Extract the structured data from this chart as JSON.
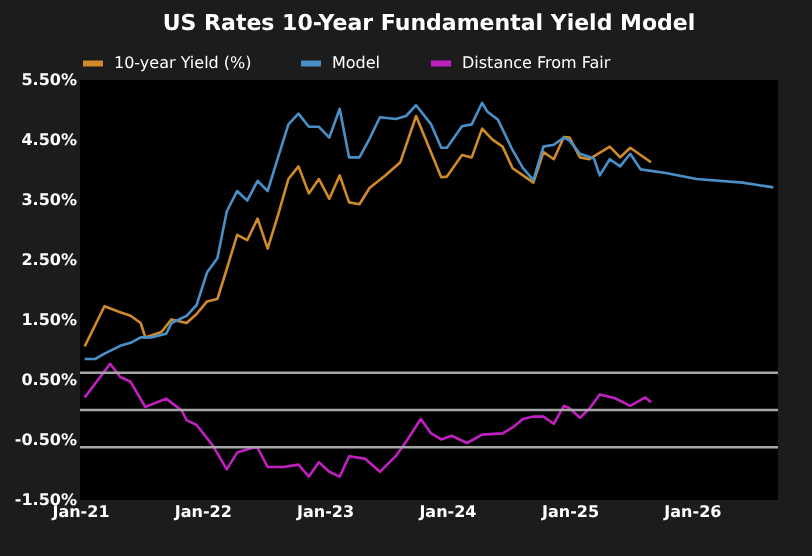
{
  "chart_data": {
    "type": "line",
    "title": "US Rates 10-Year Fundamental Yield Model",
    "xlim": [
      "2021-01-01",
      "2026-09-15"
    ],
    "xticks": [
      {
        "value": "2021-01-01",
        "label": "Jan-21"
      },
      {
        "value": "2022-01-01",
        "label": "Jan-22"
      },
      {
        "value": "2023-01-01",
        "label": "Jan-23"
      },
      {
        "value": "2024-01-01",
        "label": "Jan-24"
      },
      {
        "value": "2025-01-01",
        "label": "Jan-25"
      },
      {
        "value": "2026-01-01",
        "label": "Jan-26"
      }
    ],
    "ylim": [
      -1.5,
      5.5
    ],
    "yticks": [
      {
        "value": -1.5,
        "label": "-1.50%"
      },
      {
        "value": -0.5,
        "label": "-0.50%"
      },
      {
        "value": 0.5,
        "label": "0.50%"
      },
      {
        "value": 1.5,
        "label": "1.50%"
      },
      {
        "value": 2.5,
        "label": "2.50%"
      },
      {
        "value": 3.5,
        "label": "3.50%"
      },
      {
        "value": 4.5,
        "label": "4.50%"
      },
      {
        "value": 5.5,
        "label": "5.50%"
      }
    ],
    "grid": false,
    "legend": "top",
    "ref_lines": [
      {
        "axis": "y",
        "value": 0.62,
        "color": "#a6a6a6"
      },
      {
        "axis": "y",
        "value": 0,
        "color": "#a6a6a6"
      },
      {
        "axis": "y",
        "value": -0.62,
        "color": "#a6a6a6"
      }
    ],
    "series": [
      {
        "name": "10-year Yield (%)",
        "color": "#d08a2a",
        "x": [
          "2021-01-15",
          "2021-03-15",
          "2021-05-01",
          "2021-06-01",
          "2021-07-01",
          "2021-07-15",
          "2021-09-01",
          "2021-10-01",
          "2021-11-15",
          "2021-12-15",
          "2022-01-15",
          "2022-02-15",
          "2022-03-15",
          "2022-04-15",
          "2022-05-15",
          "2022-06-15",
          "2022-07-15",
          "2022-08-15",
          "2022-09-15",
          "2022-10-15",
          "2022-11-15",
          "2022-12-15",
          "2023-01-15",
          "2023-02-15",
          "2023-03-15",
          "2023-04-15",
          "2023-05-15",
          "2023-07-01",
          "2023-08-15",
          "2023-10-01",
          "2023-12-15",
          "2024-01-01",
          "2024-02-15",
          "2024-03-15",
          "2024-04-15",
          "2024-05-15",
          "2024-06-15",
          "2024-07-15",
          "2024-08-15",
          "2024-09-15",
          "2024-10-15",
          "2024-11-15",
          "2024-12-15",
          "2025-01-01",
          "2025-02-01",
          "2025-03-01",
          "2025-05-01",
          "2025-06-01",
          "2025-07-01",
          "2025-09-01"
        ],
        "values": [
          1.06,
          1.73,
          1.63,
          1.57,
          1.45,
          1.21,
          1.3,
          1.51,
          1.45,
          1.6,
          1.81,
          1.85,
          2.35,
          2.92,
          2.83,
          3.19,
          2.69,
          3.25,
          3.85,
          4.06,
          3.61,
          3.85,
          3.52,
          3.91,
          3.46,
          3.43,
          3.7,
          3.91,
          4.13,
          4.9,
          3.88,
          3.89,
          4.25,
          4.21,
          4.69,
          4.51,
          4.39,
          4.03,
          3.91,
          3.79,
          4.3,
          4.18,
          4.55,
          4.54,
          4.21,
          4.18,
          4.39,
          4.21,
          4.37,
          4.13
        ]
      },
      {
        "name": "Model",
        "color": "#4a90c8",
        "x": [
          "2021-01-15",
          "2021-02-15",
          "2021-03-15",
          "2021-05-01",
          "2021-06-01",
          "2021-07-01",
          "2021-08-01",
          "2021-09-15",
          "2021-10-01",
          "2021-11-15",
          "2021-12-15",
          "2022-01-15",
          "2022-02-15",
          "2022-03-15",
          "2022-04-15",
          "2022-05-15",
          "2022-06-15",
          "2022-07-15",
          "2022-08-15",
          "2022-09-15",
          "2022-10-15",
          "2022-11-15",
          "2022-12-15",
          "2023-01-15",
          "2023-02-15",
          "2023-03-15",
          "2023-04-15",
          "2023-05-15",
          "2023-06-15",
          "2023-08-01",
          "2023-09-01",
          "2023-10-01",
          "2023-11-15",
          "2023-12-15",
          "2024-01-01",
          "2024-02-15",
          "2024-03-15",
          "2024-04-15",
          "2024-05-01",
          "2024-06-01",
          "2024-07-15",
          "2024-08-15",
          "2024-09-15",
          "2024-10-15",
          "2024-11-15",
          "2024-12-15",
          "2025-01-01",
          "2025-02-01",
          "2025-03-15",
          "2025-04-01",
          "2025-05-01",
          "2025-06-01",
          "2025-07-01",
          "2025-08-01",
          "2025-10-15",
          "2026-01-15",
          "2026-06-01",
          "2026-09-01"
        ],
        "values": [
          0.85,
          0.85,
          0.94,
          1.07,
          1.12,
          1.21,
          1.21,
          1.27,
          1.45,
          1.57,
          1.75,
          2.29,
          2.53,
          3.31,
          3.65,
          3.49,
          3.82,
          3.65,
          4.21,
          4.76,
          4.94,
          4.72,
          4.72,
          4.54,
          5.02,
          4.21,
          4.21,
          4.52,
          4.88,
          4.85,
          4.9,
          5.08,
          4.76,
          4.37,
          4.37,
          4.73,
          4.76,
          5.12,
          4.97,
          4.84,
          4.33,
          4.03,
          3.83,
          4.39,
          4.42,
          4.54,
          4.49,
          4.27,
          4.19,
          3.91,
          4.18,
          4.06,
          4.27,
          4.01,
          3.95,
          3.85,
          3.79,
          3.71
        ]
      },
      {
        "name": "Distance From Fair",
        "color": "#c020c0",
        "x": [
          "2021-01-15",
          "2021-04-01",
          "2021-05-01",
          "2021-06-01",
          "2021-07-15",
          "2021-09-15",
          "2021-11-01",
          "2021-11-15",
          "2021-12-15",
          "2022-02-01",
          "2022-03-15",
          "2022-04-15",
          "2022-06-01",
          "2022-06-15",
          "2022-07-15",
          "2022-09-01",
          "2022-10-15",
          "2022-11-15",
          "2022-12-15",
          "2023-01-15",
          "2023-02-15",
          "2023-03-15",
          "2023-05-01",
          "2023-06-15",
          "2023-08-01",
          "2023-09-01",
          "2023-10-15",
          "2023-11-15",
          "2023-12-15",
          "2024-01-15",
          "2024-03-01",
          "2024-04-15",
          "2024-06-15",
          "2024-07-15",
          "2024-08-15",
          "2024-09-15",
          "2024-10-15",
          "2024-11-15",
          "2024-12-15",
          "2025-01-01",
          "2025-02-01",
          "2025-03-01",
          "2025-04-01",
          "2025-05-15",
          "2025-07-01",
          "2025-08-15",
          "2025-09-01"
        ],
        "values": [
          0.21,
          0.77,
          0.55,
          0.47,
          0.05,
          0.19,
          -0.01,
          -0.17,
          -0.25,
          -0.59,
          -0.99,
          -0.71,
          -0.63,
          -0.63,
          -0.95,
          -0.95,
          -0.91,
          -1.11,
          -0.87,
          -1.03,
          -1.11,
          -0.77,
          -0.81,
          -1.03,
          -0.77,
          -0.53,
          -0.15,
          -0.39,
          -0.49,
          -0.43,
          -0.55,
          -0.41,
          -0.39,
          -0.29,
          -0.15,
          -0.11,
          -0.11,
          -0.23,
          0.07,
          0.03,
          -0.13,
          0.02,
          0.26,
          0.2,
          0.07,
          0.21,
          0.13
        ]
      }
    ]
  }
}
